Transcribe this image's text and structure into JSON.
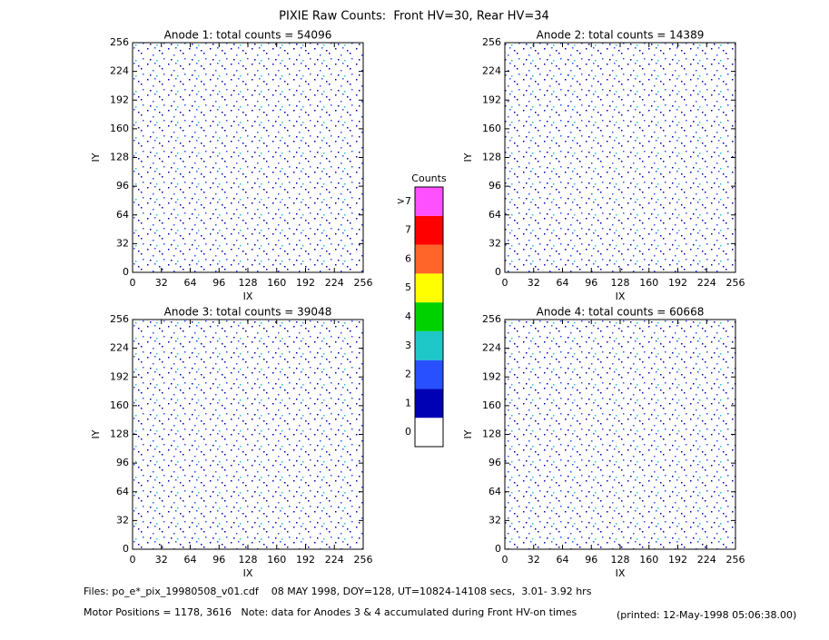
{
  "title": "PIXIE Raw Counts:  Front HV=30, Rear HV=34",
  "chart_data": [
    {
      "type": "heatmap",
      "title": "Anode 1: total counts = 54096",
      "xlabel": "IX",
      "ylabel": "IY",
      "xlim": [
        0,
        256
      ],
      "ylim": [
        0,
        256
      ],
      "xticks": [
        0,
        32,
        64,
        96,
        128,
        160,
        192,
        224,
        256
      ],
      "yticks": [
        0,
        32,
        64,
        96,
        128,
        160,
        192,
        224,
        256
      ]
    },
    {
      "type": "heatmap",
      "title": "Anode 2: total counts = 14389",
      "xlabel": "IX",
      "ylabel": "IY",
      "xlim": [
        0,
        256
      ],
      "ylim": [
        0,
        256
      ],
      "xticks": [
        0,
        32,
        64,
        96,
        128,
        160,
        192,
        224,
        256
      ],
      "yticks": [
        0,
        32,
        64,
        96,
        128,
        160,
        192,
        224,
        256
      ]
    },
    {
      "type": "heatmap",
      "title": "Anode 3: total counts = 39048",
      "xlabel": "IX",
      "ylabel": "IY",
      "xlim": [
        0,
        256
      ],
      "ylim": [
        0,
        256
      ],
      "xticks": [
        0,
        32,
        64,
        96,
        128,
        160,
        192,
        224,
        256
      ],
      "yticks": [
        0,
        32,
        64,
        96,
        128,
        160,
        192,
        224,
        256
      ]
    },
    {
      "type": "heatmap",
      "title": "Anode 4: total counts = 60668",
      "xlabel": "IX",
      "ylabel": "IY",
      "xlim": [
        0,
        256
      ],
      "ylim": [
        0,
        256
      ],
      "xticks": [
        0,
        32,
        64,
        96,
        128,
        160,
        192,
        224,
        256
      ],
      "yticks": [
        0,
        32,
        64,
        96,
        128,
        160,
        192,
        224,
        256
      ]
    }
  ],
  "colorbar": {
    "title": "Counts",
    "labels": [
      "0",
      "1",
      "2",
      "3",
      "4",
      "5",
      "6",
      "7",
      ">7"
    ],
    "colors": [
      "#ffffff",
      "#0000b4",
      "#2850ff",
      "#1ec8c8",
      "#00d200",
      "#ffff00",
      "#ff6428",
      "#ff0000",
      "#ff50ff"
    ]
  },
  "footer": {
    "files": "Files: po_e*_pix_19980508_v01.cdf    08 MAY 1998, DOY=128, UT=10824-14108 secs,  3.01- 3.92 hrs",
    "motor": "Motor Positions = 1178, 3616   Note: data for Anodes 3 & 4 accumulated during Front HV-on times",
    "printed": "(printed: 12-May-1998 05:06:38.00)"
  }
}
